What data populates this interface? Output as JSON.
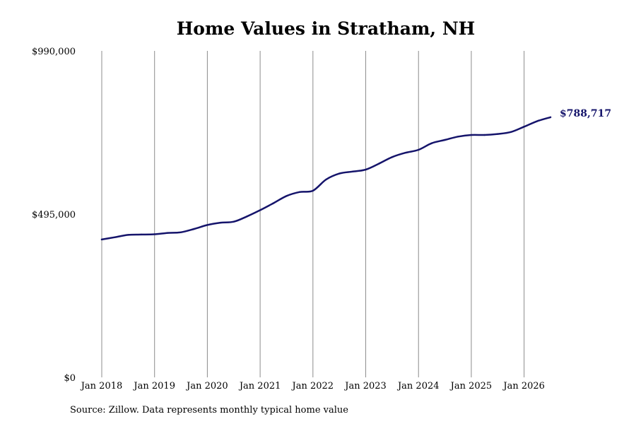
{
  "page": {
    "source_note": "Source: Zillow. Data represents monthly typical home value"
  },
  "colors": {
    "line": "#15146b",
    "gridline": "#8c8c8c",
    "background": "#ffffff",
    "text": "#000000"
  },
  "chart_data": {
    "type": "line",
    "title": "Home Values in Stratham, NH",
    "xlabel": "",
    "ylabel": "",
    "ylim": [
      0,
      990000
    ],
    "yticks": [
      {
        "value": 0,
        "label": "$0"
      },
      {
        "value": 495000,
        "label": "$495,000"
      },
      {
        "value": 990000,
        "label": "$990,000"
      }
    ],
    "xlim": [
      "2018-01",
      "2026-07"
    ],
    "xticks": [
      {
        "value": "2018-01",
        "label": "Jan 2018"
      },
      {
        "value": "2019-01",
        "label": "Jan 2019"
      },
      {
        "value": "2020-01",
        "label": "Jan 2020"
      },
      {
        "value": "2021-01",
        "label": "Jan 2021"
      },
      {
        "value": "2022-01",
        "label": "Jan 2022"
      },
      {
        "value": "2023-01",
        "label": "Jan 2023"
      },
      {
        "value": "2024-01",
        "label": "Jan 2024"
      },
      {
        "value": "2025-01",
        "label": "Jan 2025"
      },
      {
        "value": "2026-01",
        "label": "Jan 2026"
      }
    ],
    "grid": "vertical",
    "legend": "none",
    "end_label": "$788,717",
    "series": [
      {
        "x": [
          "2018-01",
          "2018-04",
          "2018-07",
          "2018-10",
          "2019-01",
          "2019-04",
          "2019-07",
          "2019-10",
          "2020-01",
          "2020-04",
          "2020-07",
          "2020-10",
          "2021-01",
          "2021-04",
          "2021-07",
          "2021-10",
          "2022-01",
          "2022-04",
          "2022-07",
          "2022-10",
          "2023-01",
          "2023-04",
          "2023-07",
          "2023-10",
          "2024-01",
          "2024-04",
          "2024-07",
          "2024-10",
          "2025-01",
          "2025-04",
          "2025-07",
          "2025-10",
          "2026-01",
          "2026-04",
          "2026-07"
        ],
        "values": [
          418000,
          425000,
          432000,
          433000,
          434000,
          438000,
          440000,
          450000,
          462000,
          469000,
          472000,
          488000,
          507000,
          528000,
          550000,
          562000,
          566000,
          600000,
          618000,
          624000,
          630000,
          648000,
          668000,
          681000,
          690000,
          710000,
          720000,
          730000,
          735000,
          735000,
          738000,
          744000,
          760000,
          777000,
          788717
        ]
      }
    ]
  }
}
